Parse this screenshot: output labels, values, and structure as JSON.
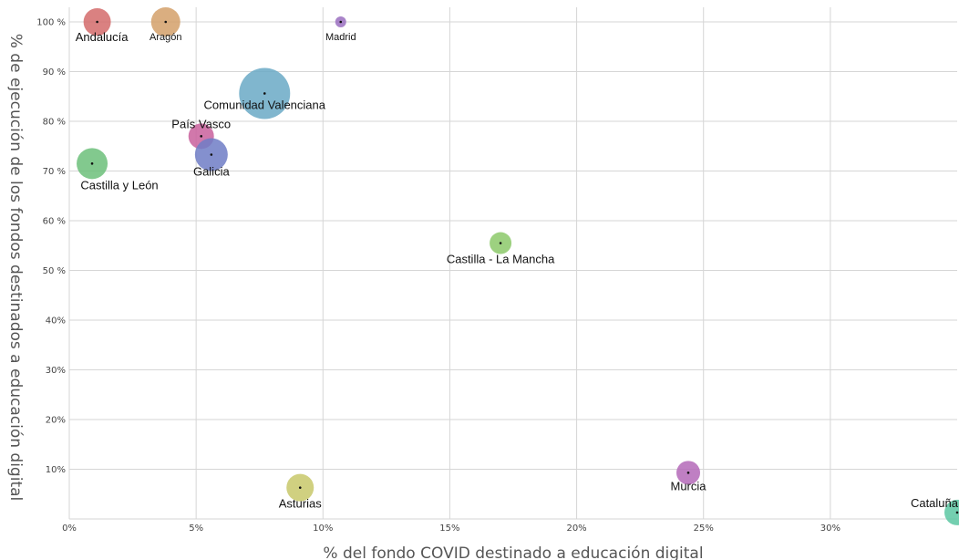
{
  "chart_data": {
    "type": "scatter",
    "xlabel": "% del fondo COVID destinado a educación digital",
    "ylabel": "% de ejecución de los fondos destinados a educación digital",
    "xlim": [
      0,
      35
    ],
    "ylim": [
      0,
      100
    ],
    "x_ticks": [
      {
        "value": 0,
        "label": "0%"
      },
      {
        "value": 5,
        "label": "5%"
      },
      {
        "value": 10,
        "label": "10%"
      },
      {
        "value": 15,
        "label": "15%"
      },
      {
        "value": 20,
        "label": "20%"
      },
      {
        "value": 25,
        "label": "25%"
      },
      {
        "value": 30,
        "label": "30%"
      }
    ],
    "y_ticks": [
      {
        "value": 10,
        "label": "10%"
      },
      {
        "value": 20,
        "label": "20%"
      },
      {
        "value": 30,
        "label": "30%"
      },
      {
        "value": 40,
        "label": "40%"
      },
      {
        "value": 50,
        "label": "50 %"
      },
      {
        "value": 60,
        "label": "60 %"
      },
      {
        "value": 70,
        "label": "70 %"
      },
      {
        "value": 80,
        "label": "80 %"
      },
      {
        "value": 90,
        "label": "90 %"
      },
      {
        "value": 100,
        "label": "100 %"
      }
    ],
    "grid": true,
    "legend": "none",
    "points": [
      {
        "name": "Andalucía",
        "x": 1.1,
        "y": 100,
        "color": "#d36b6b",
        "label_pos": "below"
      },
      {
        "name": "Aragón",
        "x": 3.8,
        "y": 100,
        "color": "#d4a06a",
        "label_pos": "below"
      },
      {
        "name": "Madrid",
        "x": 10.7,
        "y": 100,
        "color": "#9a6fc0",
        "label_pos": "below"
      },
      {
        "name": "Comunidad Valenciana",
        "x": 7.7,
        "y": 85.6,
        "color": "#6aa9c6",
        "label_pos": "below"
      },
      {
        "name": "País Vasco",
        "x": 5.2,
        "y": 77,
        "color": "#c9609c",
        "label_pos": "above"
      },
      {
        "name": "Galicia",
        "x": 5.6,
        "y": 73.3,
        "color": "#6f7cc6",
        "label_pos": "below"
      },
      {
        "name": "Castilla y León",
        "x": 0.9,
        "y": 71.5,
        "color": "#6cc07a",
        "label_pos": "below"
      },
      {
        "name": "Castilla - La Mancha",
        "x": 17.0,
        "y": 55.5,
        "color": "#8cc96a",
        "label_pos": "below"
      },
      {
        "name": "Asturias",
        "x": 9.1,
        "y": 6.3,
        "color": "#c8c86a",
        "label_pos": "below"
      },
      {
        "name": "Murcia",
        "x": 24.4,
        "y": 9.3,
        "color": "#b469b9",
        "label_pos": "below"
      },
      {
        "name": "Cataluña",
        "x": 35.0,
        "y": 1.3,
        "color": "#5cc7a2",
        "label_pos": "left"
      }
    ]
  }
}
